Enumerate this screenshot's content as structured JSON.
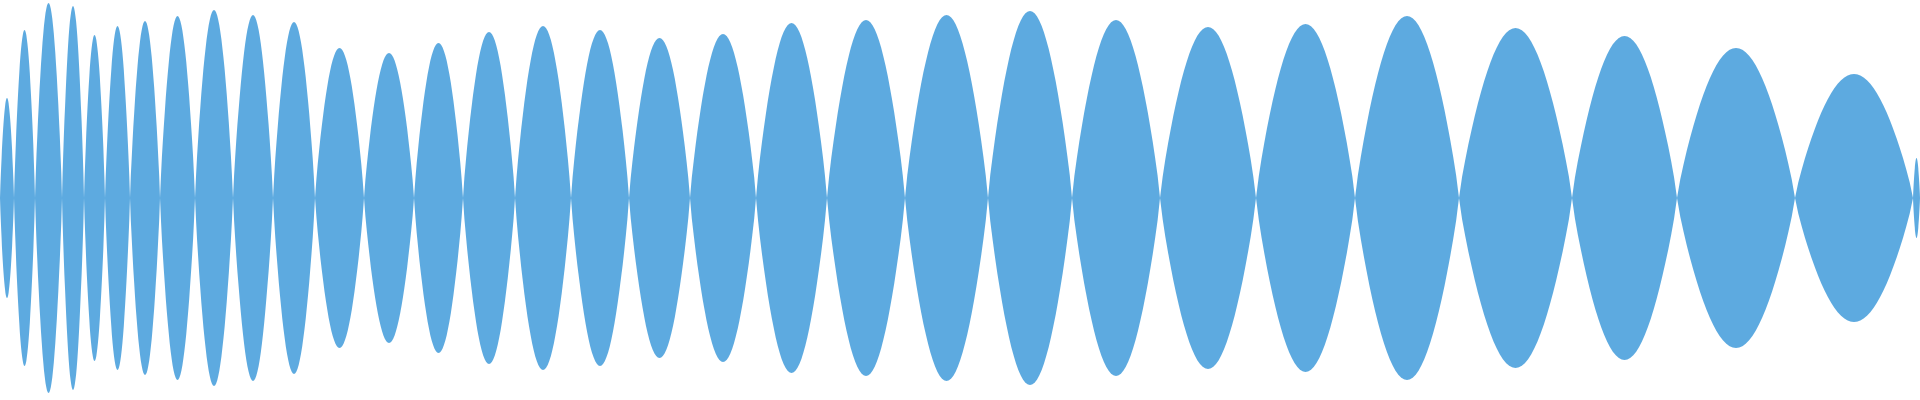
{
  "waveform": {
    "fill_color": "#5DAAE0",
    "background_color": "#FFFFFF",
    "lobe_count": 38
  }
}
